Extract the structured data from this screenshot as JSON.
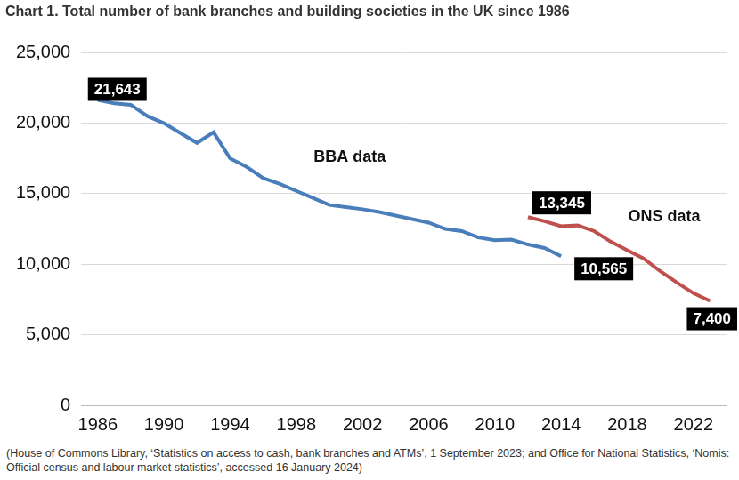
{
  "chart_data": {
    "type": "line",
    "title": "Chart 1. Total number of bank branches and building societies in the UK since 1986",
    "source": "(House of Commons Library, ‘Statistics on access to cash, bank branches and ATMs’, 1 September 2023; and Office for National Statistics, ‘Nomis: Official census and labour market statistics’, accessed 16 January 2024)",
    "x": [
      1986,
      1987,
      1988,
      1989,
      1990,
      1991,
      1992,
      1993,
      1994,
      1995,
      1996,
      1997,
      1998,
      1999,
      2000,
      2001,
      2002,
      2003,
      2004,
      2005,
      2006,
      2007,
      2008,
      2009,
      2010,
      2011,
      2012,
      2013,
      2014,
      2015,
      2016,
      2017,
      2018,
      2019,
      2020,
      2021,
      2022,
      2023
    ],
    "series": [
      {
        "name": "BBA data",
        "color": "#4a7ebb",
        "values": [
          21643,
          21400,
          21300,
          20500,
          20000,
          19300,
          18600,
          19350,
          17500,
          16900,
          16100,
          15700,
          15200,
          14700,
          14200,
          14050,
          13900,
          13700,
          13450,
          13200,
          12950,
          12500,
          12350,
          11900,
          11700,
          11750,
          11400,
          11150,
          10565,
          null,
          null,
          null,
          null,
          null,
          null,
          null,
          null,
          null
        ]
      },
      {
        "name": "ONS data",
        "color": "#c0504d",
        "values": [
          null,
          null,
          null,
          null,
          null,
          null,
          null,
          null,
          null,
          null,
          null,
          null,
          null,
          null,
          null,
          null,
          null,
          null,
          null,
          null,
          null,
          null,
          null,
          null,
          null,
          null,
          13345,
          13050,
          12700,
          12750,
          12350,
          11600,
          11000,
          10400,
          9500,
          8700,
          7950,
          7400
        ]
      }
    ],
    "annotations": [
      {
        "text": "21,643",
        "x": 1986,
        "y": 21643
      },
      {
        "text": "13,345",
        "x": 2012,
        "y": 13345
      },
      {
        "text": "10,565",
        "x": 2014,
        "y": 10565
      },
      {
        "text": "7,400",
        "x": 2023,
        "y": 7400
      }
    ],
    "xlim": [
      1985,
      2024
    ],
    "xticks": [
      1986,
      1990,
      1994,
      1998,
      2002,
      2006,
      2010,
      2014,
      2018,
      2022
    ],
    "ylim": [
      0,
      25000
    ],
    "yticks": [
      0,
      {
        "value": 5000,
        "label": "5,000"
      },
      {
        "value": 10000,
        "label": "10,000"
      },
      {
        "value": 15000,
        "label": "15,000"
      },
      {
        "value": 20000,
        "label": "20,000"
      },
      {
        "value": 25000,
        "label": "25,000"
      }
    ],
    "grid": true,
    "legend": "none"
  }
}
